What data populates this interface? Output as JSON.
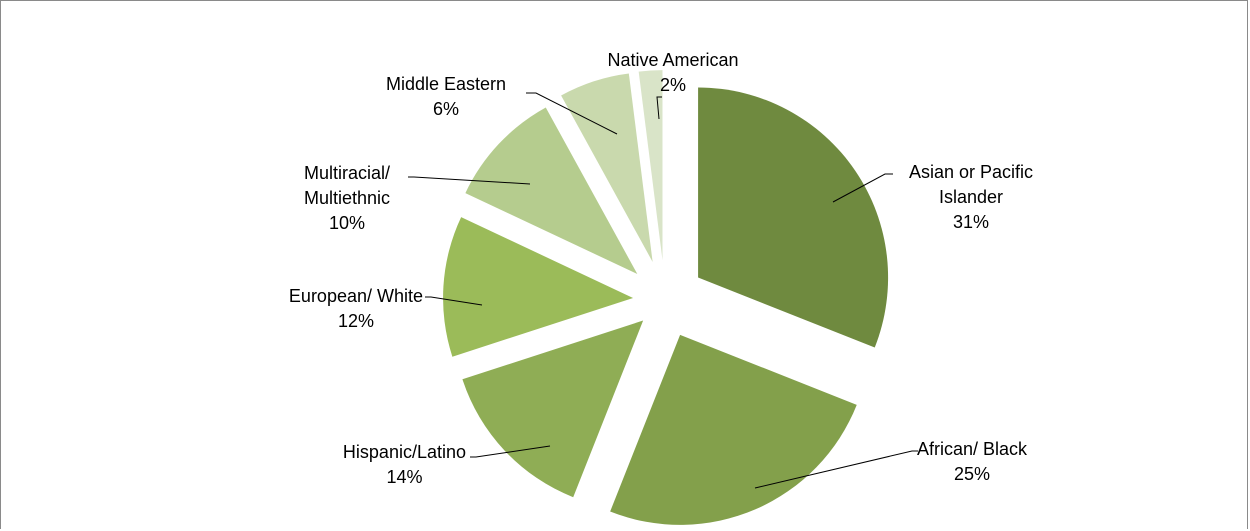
{
  "chart_data": {
    "type": "pie",
    "title": "",
    "exploded": true,
    "slices": [
      {
        "name": "Asian or Pacific Islander",
        "label_lines": [
          "Asian or Pacific",
          "Islander"
        ],
        "percent_label": "31%",
        "value": 31,
        "color": "#6f8a3f"
      },
      {
        "name": "African/ Black",
        "label_lines": [
          "African/ Black"
        ],
        "percent_label": "25%",
        "value": 25,
        "color": "#83a04b"
      },
      {
        "name": "Hispanic/Latino",
        "label_lines": [
          "Hispanic/Latino"
        ],
        "percent_label": "14%",
        "value": 14,
        "color": "#8fad55"
      },
      {
        "name": "European/ White",
        "label_lines": [
          "European/ White"
        ],
        "percent_label": "12%",
        "value": 12,
        "color": "#9bbb59"
      },
      {
        "name": "Multiracial/ Multiethnic",
        "label_lines": [
          "Multiracial/",
          "Multiethnic"
        ],
        "percent_label": "10%",
        "value": 10,
        "color": "#b5cc8e"
      },
      {
        "name": "Middle Eastern",
        "label_lines": [
          "Middle Eastern"
        ],
        "percent_label": "6%",
        "value": 6,
        "color": "#c9d9ad"
      },
      {
        "name": "Native American",
        "label_lines": [
          "Native American"
        ],
        "percent_label": "2%",
        "value": 2,
        "color": "#d9e4c8"
      }
    ]
  }
}
